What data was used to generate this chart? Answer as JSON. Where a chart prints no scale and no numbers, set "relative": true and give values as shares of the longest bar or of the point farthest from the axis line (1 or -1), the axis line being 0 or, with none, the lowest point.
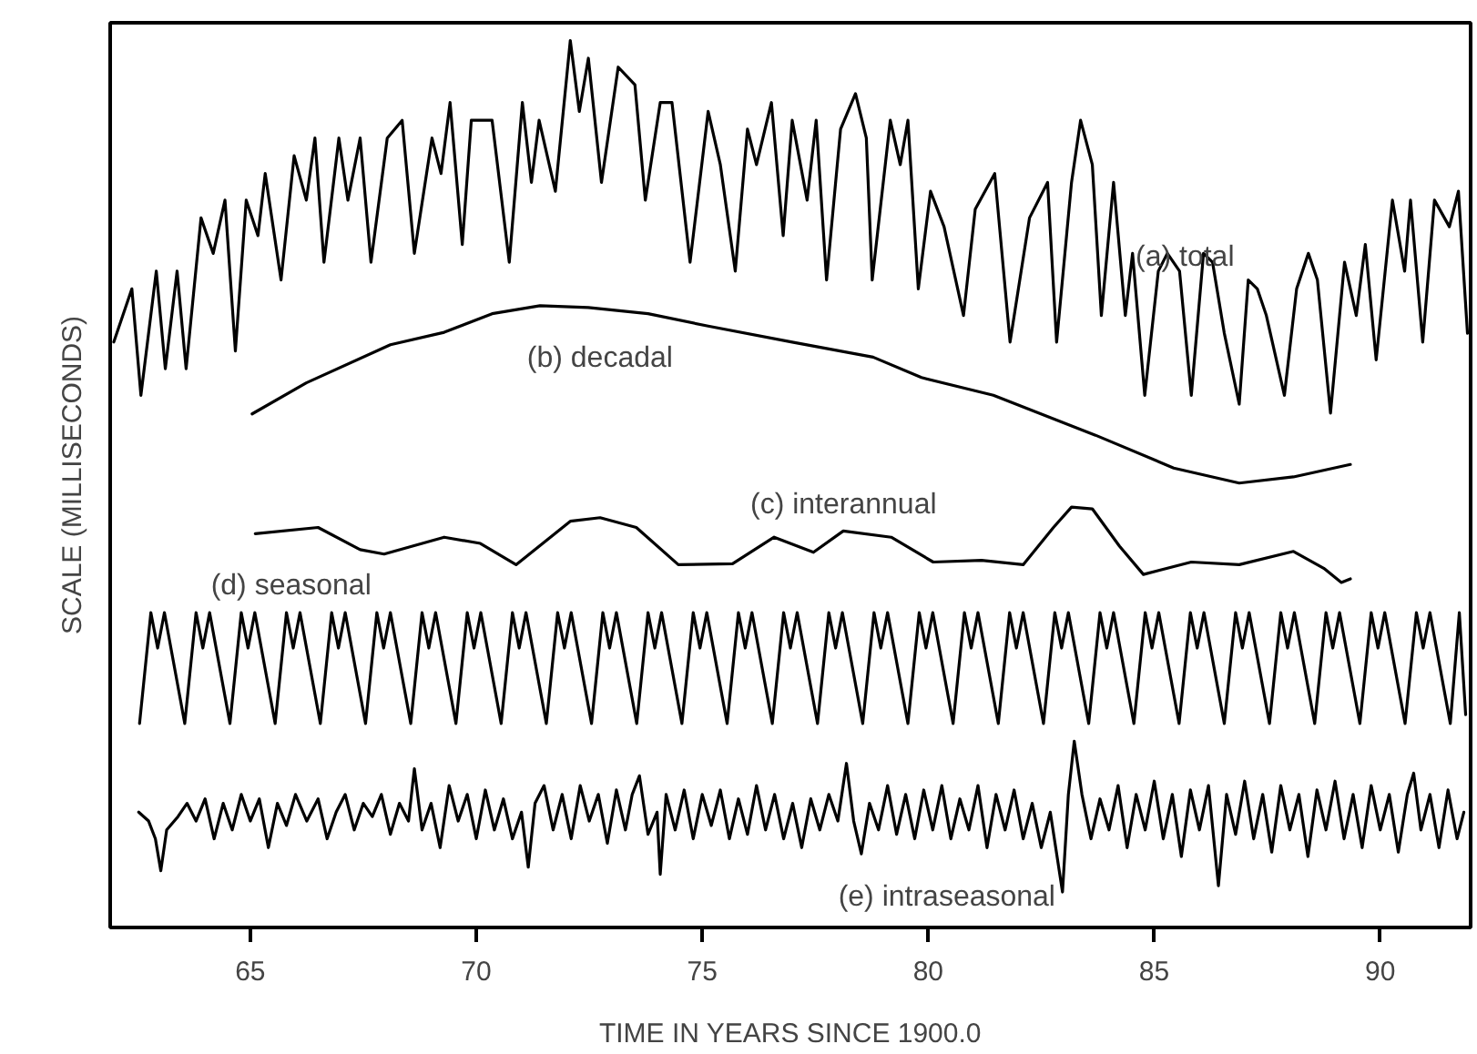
{
  "chart_data": {
    "type": "line",
    "relative": true,
    "xlabel": "TIME IN YEARS SINCE 1900.0",
    "ylabel": "SCALE (MILLISECONDS)",
    "xlim": [
      61.9,
      92.0
    ],
    "xticks": [
      65,
      70,
      75,
      80,
      85,
      90
    ],
    "series": [
      {
        "name": "(a) total",
        "color": "#000000",
        "x": [
          61.98,
          62.38,
          62.58,
          62.92,
          63.12,
          63.38,
          63.58,
          63.91,
          64.18,
          64.44,
          64.67,
          64.91,
          65.17,
          65.33,
          65.68,
          65.97,
          66.24,
          66.43,
          66.63,
          66.96,
          67.16,
          67.43,
          67.67,
          68.03,
          68.36,
          68.63,
          69.02,
          69.22,
          69.42,
          69.69,
          69.89,
          70.35,
          70.73,
          71.02,
          71.22,
          71.39,
          71.75,
          72.08,
          72.28,
          72.48,
          72.77,
          73.14,
          73.51,
          73.74,
          74.07,
          74.33,
          74.73,
          75.13,
          75.4,
          75.73,
          76.0,
          76.2,
          76.53,
          76.79,
          76.99,
          77.32,
          77.52,
          77.75,
          78.06,
          78.39,
          78.63,
          78.76,
          79.16,
          79.38,
          79.55,
          79.78,
          80.05,
          80.35,
          80.78,
          81.04,
          81.47,
          81.81,
          82.24,
          82.64,
          82.84,
          83.17,
          83.37,
          83.63,
          83.83,
          84.1,
          84.36,
          84.52,
          84.79,
          85.09,
          85.29,
          85.56,
          85.82,
          86.09,
          86.29,
          86.55,
          86.88,
          87.08,
          87.28,
          87.48,
          87.88,
          88.15,
          88.41,
          88.61,
          88.9,
          89.21,
          89.47,
          89.67,
          89.91,
          90.27,
          90.54,
          90.67,
          90.94,
          91.2,
          91.53,
          91.73,
          91.93
        ],
        "values": [
          0.66,
          0.72,
          0.6,
          0.74,
          0.63,
          0.74,
          0.63,
          0.8,
          0.76,
          0.82,
          0.65,
          0.82,
          0.78,
          0.85,
          0.73,
          0.87,
          0.82,
          0.89,
          0.75,
          0.89,
          0.82,
          0.89,
          0.75,
          0.89,
          0.91,
          0.76,
          0.89,
          0.85,
          0.93,
          0.77,
          0.91,
          0.91,
          0.75,
          0.93,
          0.84,
          0.91,
          0.83,
          1.0,
          0.92,
          0.98,
          0.84,
          0.97,
          0.95,
          0.82,
          0.93,
          0.93,
          0.75,
          0.92,
          0.86,
          0.74,
          0.9,
          0.86,
          0.93,
          0.78,
          0.91,
          0.82,
          0.91,
          0.73,
          0.9,
          0.94,
          0.89,
          0.73,
          0.91,
          0.86,
          0.91,
          0.72,
          0.83,
          0.79,
          0.69,
          0.81,
          0.85,
          0.66,
          0.8,
          0.84,
          0.66,
          0.84,
          0.91,
          0.86,
          0.69,
          0.84,
          0.69,
          0.76,
          0.6,
          0.74,
          0.76,
          0.74,
          0.6,
          0.76,
          0.75,
          0.67,
          0.59,
          0.73,
          0.72,
          0.69,
          0.6,
          0.72,
          0.76,
          0.73,
          0.58,
          0.75,
          0.69,
          0.77,
          0.64,
          0.82,
          0.74,
          0.82,
          0.66,
          0.82,
          0.79,
          0.83,
          0.67
        ]
      },
      {
        "name": "(b) decadal",
        "color": "#000000",
        "x": [
          65.04,
          66.24,
          68.1,
          69.29,
          70.35,
          71.41,
          72.48,
          73.8,
          75.13,
          76.99,
          78.78,
          79.85,
          81.44,
          83.7,
          85.43,
          86.88,
          88.08,
          89.34
        ],
        "values": [
          0.579,
          0.614,
          0.657,
          0.671,
          0.692,
          0.701,
          0.699,
          0.692,
          0.678,
          0.66,
          0.643,
          0.62,
          0.6,
          0.555,
          0.518,
          0.501,
          0.508,
          0.522
        ]
      },
      {
        "name": "(c) interannual",
        "color": "#000000",
        "x": [
          65.11,
          66.5,
          67.43,
          67.96,
          69.29,
          70.09,
          70.88,
          72.08,
          72.74,
          73.54,
          74.47,
          75.67,
          76.59,
          77.46,
          78.12,
          79.18,
          80.11,
          81.18,
          82.1,
          82.77,
          83.17,
          83.63,
          84.23,
          84.76,
          85.82,
          86.88,
          88.08,
          88.75,
          89.14,
          89.34
        ],
        "values": [
          0.444,
          0.451,
          0.426,
          0.421,
          0.44,
          0.433,
          0.409,
          0.458,
          0.462,
          0.451,
          0.409,
          0.41,
          0.44,
          0.423,
          0.447,
          0.44,
          0.412,
          0.414,
          0.409,
          0.451,
          0.474,
          0.472,
          0.43,
          0.398,
          0.412,
          0.409,
          0.424,
          0.405,
          0.389,
          0.393
        ]
      },
      {
        "name": "(d) seasonal",
        "color": "#000000",
        "x": [
          62.55,
          62.8,
          62.95,
          63.1,
          63.55,
          63.8,
          63.95,
          64.1,
          64.55,
          64.8,
          64.95,
          65.1,
          65.55,
          65.8,
          65.95,
          66.1,
          66.55,
          66.8,
          66.95,
          67.1,
          67.55,
          67.8,
          67.95,
          68.1,
          68.55,
          68.8,
          68.95,
          69.1,
          69.55,
          69.8,
          69.95,
          70.1,
          70.55,
          70.8,
          70.95,
          71.1,
          71.55,
          71.8,
          71.95,
          72.1,
          72.55,
          72.8,
          72.95,
          73.1,
          73.55,
          73.8,
          73.95,
          74.1,
          74.55,
          74.8,
          74.95,
          75.1,
          75.55,
          75.8,
          75.95,
          76.1,
          76.55,
          76.8,
          76.95,
          77.1,
          77.55,
          77.8,
          77.95,
          78.1,
          78.55,
          78.8,
          78.95,
          79.1,
          79.55,
          79.8,
          79.95,
          80.1,
          80.55,
          80.8,
          80.95,
          81.1,
          81.55,
          81.8,
          81.95,
          82.1,
          82.55,
          82.8,
          82.95,
          83.1,
          83.55,
          83.8,
          83.95,
          84.1,
          84.55,
          84.8,
          84.95,
          85.1,
          85.55,
          85.8,
          85.95,
          86.1,
          86.55,
          86.8,
          86.95,
          87.1,
          87.55,
          87.8,
          87.95,
          88.1,
          88.55,
          88.8,
          88.95,
          89.1,
          89.55,
          89.8,
          89.95,
          90.1,
          90.55,
          90.8,
          90.95,
          91.1,
          91.55,
          91.75,
          91.89
        ],
        "values": [
          0.23,
          0.355,
          0.315,
          0.355,
          0.23,
          0.355,
          0.315,
          0.355,
          0.23,
          0.355,
          0.315,
          0.355,
          0.23,
          0.355,
          0.315,
          0.355,
          0.23,
          0.355,
          0.315,
          0.355,
          0.23,
          0.355,
          0.315,
          0.355,
          0.23,
          0.355,
          0.315,
          0.355,
          0.23,
          0.355,
          0.315,
          0.355,
          0.23,
          0.355,
          0.315,
          0.355,
          0.23,
          0.355,
          0.315,
          0.355,
          0.23,
          0.355,
          0.315,
          0.355,
          0.23,
          0.355,
          0.315,
          0.355,
          0.23,
          0.355,
          0.315,
          0.355,
          0.23,
          0.355,
          0.315,
          0.355,
          0.23,
          0.355,
          0.315,
          0.355,
          0.23,
          0.355,
          0.315,
          0.355,
          0.23,
          0.355,
          0.315,
          0.355,
          0.23,
          0.355,
          0.315,
          0.355,
          0.23,
          0.355,
          0.315,
          0.355,
          0.23,
          0.355,
          0.315,
          0.355,
          0.23,
          0.355,
          0.315,
          0.355,
          0.23,
          0.355,
          0.315,
          0.355,
          0.23,
          0.355,
          0.315,
          0.355,
          0.23,
          0.355,
          0.315,
          0.355,
          0.23,
          0.355,
          0.315,
          0.355,
          0.23,
          0.355,
          0.315,
          0.355,
          0.23,
          0.355,
          0.315,
          0.355,
          0.23,
          0.355,
          0.315,
          0.355,
          0.23,
          0.355,
          0.315,
          0.355,
          0.23,
          0.355,
          0.24
        ]
      },
      {
        "name": "(e) intraseasonal",
        "color": "#000000",
        "x": [
          62.53,
          62.75,
          62.9,
          63.02,
          63.15,
          63.4,
          63.6,
          63.8,
          64.0,
          64.2,
          64.4,
          64.6,
          64.8,
          65.0,
          65.2,
          65.4,
          65.6,
          65.8,
          66.0,
          66.25,
          66.5,
          66.7,
          66.9,
          67.1,
          67.3,
          67.5,
          67.7,
          67.9,
          68.1,
          68.3,
          68.5,
          68.63,
          68.8,
          69.0,
          69.2,
          69.4,
          69.6,
          69.8,
          70.0,
          70.2,
          70.4,
          70.6,
          70.8,
          71.0,
          71.15,
          71.3,
          71.5,
          71.7,
          71.9,
          72.1,
          72.3,
          72.5,
          72.7,
          72.9,
          73.1,
          73.3,
          73.45,
          73.61,
          73.8,
          74.0,
          74.07,
          74.2,
          74.4,
          74.6,
          74.8,
          75.0,
          75.2,
          75.4,
          75.6,
          75.8,
          76.0,
          76.2,
          76.4,
          76.6,
          76.8,
          77.0,
          77.2,
          77.4,
          77.6,
          77.8,
          78.0,
          78.19,
          78.35,
          78.52,
          78.7,
          78.9,
          79.1,
          79.3,
          79.5,
          79.7,
          79.9,
          80.1,
          80.3,
          80.5,
          80.7,
          80.9,
          81.1,
          81.3,
          81.5,
          81.7,
          81.9,
          82.1,
          82.3,
          82.5,
          82.7,
          82.97,
          83.1,
          83.23,
          83.4,
          83.6,
          83.8,
          84.0,
          84.2,
          84.4,
          84.6,
          84.8,
          85.0,
          85.2,
          85.4,
          85.6,
          85.8,
          86.0,
          86.2,
          86.42,
          86.6,
          86.8,
          87.0,
          87.2,
          87.4,
          87.6,
          87.8,
          88.0,
          88.2,
          88.4,
          88.6,
          88.8,
          89.0,
          89.2,
          89.4,
          89.6,
          89.8,
          90.0,
          90.2,
          90.4,
          90.6,
          90.74,
          90.9,
          91.1,
          91.3,
          91.5,
          91.7,
          91.85
        ],
        "values": [
          0.13,
          0.12,
          0.1,
          0.064,
          0.11,
          0.125,
          0.14,
          0.12,
          0.145,
          0.1,
          0.14,
          0.11,
          0.15,
          0.12,
          0.145,
          0.09,
          0.14,
          0.115,
          0.15,
          0.12,
          0.145,
          0.1,
          0.13,
          0.15,
          0.11,
          0.14,
          0.125,
          0.15,
          0.105,
          0.14,
          0.12,
          0.179,
          0.11,
          0.14,
          0.09,
          0.16,
          0.12,
          0.15,
          0.1,
          0.155,
          0.11,
          0.145,
          0.1,
          0.13,
          0.068,
          0.14,
          0.16,
          0.11,
          0.15,
          0.1,
          0.16,
          0.12,
          0.15,
          0.095,
          0.155,
          0.11,
          0.15,
          0.171,
          0.105,
          0.13,
          0.06,
          0.15,
          0.11,
          0.155,
          0.1,
          0.15,
          0.115,
          0.155,
          0.1,
          0.145,
          0.105,
          0.16,
          0.11,
          0.15,
          0.1,
          0.14,
          0.09,
          0.145,
          0.11,
          0.15,
          0.12,
          0.185,
          0.12,
          0.083,
          0.14,
          0.11,
          0.16,
          0.105,
          0.15,
          0.1,
          0.155,
          0.11,
          0.16,
          0.1,
          0.145,
          0.11,
          0.16,
          0.09,
          0.15,
          0.11,
          0.155,
          0.1,
          0.14,
          0.09,
          0.13,
          0.04,
          0.15,
          0.21,
          0.15,
          0.1,
          0.145,
          0.11,
          0.16,
          0.09,
          0.15,
          0.11,
          0.165,
          0.1,
          0.15,
          0.08,
          0.155,
          0.11,
          0.16,
          0.047,
          0.15,
          0.105,
          0.165,
          0.1,
          0.15,
          0.085,
          0.16,
          0.11,
          0.15,
          0.08,
          0.155,
          0.11,
          0.165,
          0.1,
          0.15,
          0.09,
          0.16,
          0.11,
          0.15,
          0.085,
          0.15,
          0.174,
          0.11,
          0.15,
          0.09,
          0.155,
          0.1,
          0.13
        ]
      }
    ]
  }
}
